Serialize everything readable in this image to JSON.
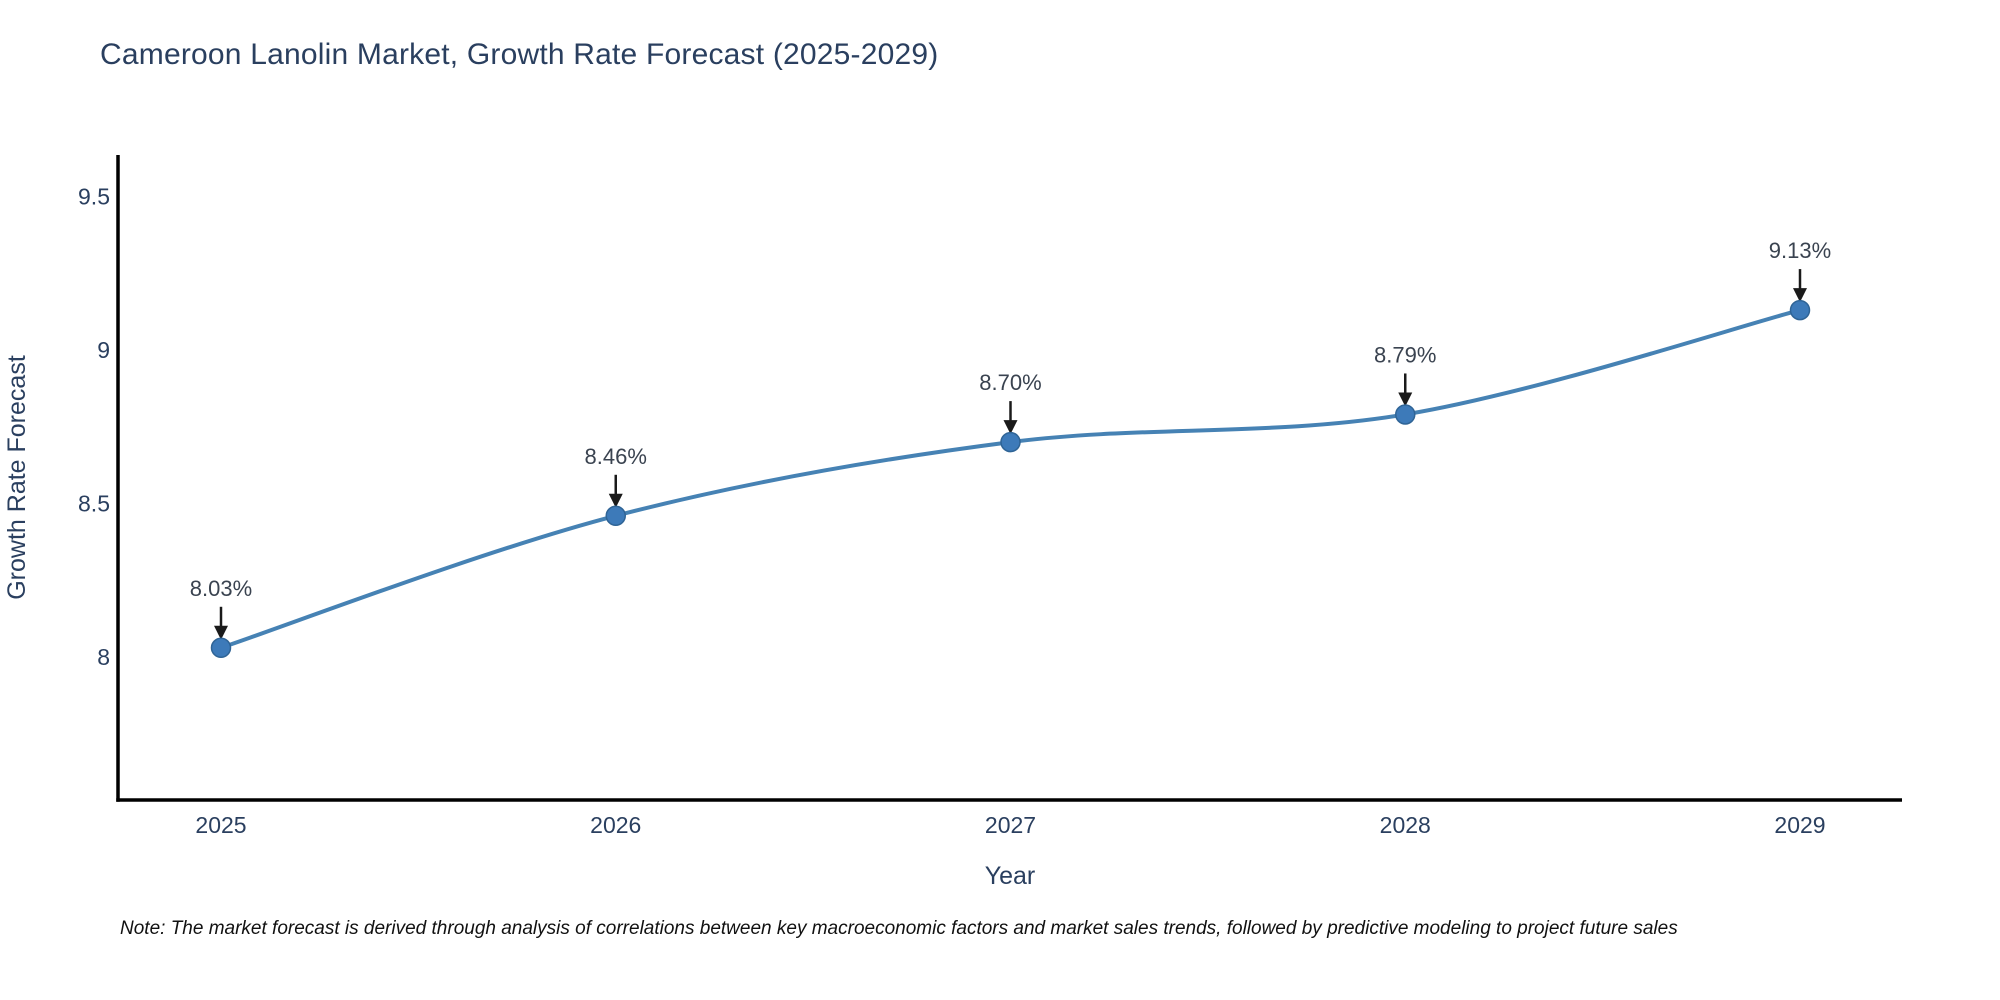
{
  "page": {
    "background": "#ffffff"
  },
  "chart_data": {
    "type": "line",
    "title": "Cameroon Lanolin Market, Growth Rate Forecast (2025-2029)",
    "xlabel": "Year",
    "ylabel": "Growth Rate Forecast",
    "categories": [
      "2025",
      "2026",
      "2027",
      "2028",
      "2029"
    ],
    "series": [
      {
        "name": "Growth Rate Forecast",
        "values": [
          8.03,
          8.46,
          8.7,
          8.79,
          9.13
        ]
      }
    ],
    "point_labels": [
      "8.03%",
      "8.46%",
      "8.70%",
      "8.79%",
      "9.13%"
    ],
    "yticks": {
      "values": [
        8,
        8.5,
        9,
        9.5
      ],
      "labels": [
        "8",
        "8.5",
        "9",
        "9.5"
      ]
    },
    "ylim": [
      7.53,
      9.63
    ],
    "grid": false,
    "legend_position": "none",
    "line_shape": "spline",
    "colors": {
      "line": "#4682b4",
      "marker": "#3d7ab9",
      "marker_edge": "#2f6496",
      "axis": "#000000",
      "text": "#2a3f5f",
      "annotation_text": "#3a4350",
      "arrow": "#1a1a1a"
    }
  },
  "note": {
    "text": "Note: The market forecast is derived through analysis of correlations between key macroeconomic factors and market sales trends, followed by predictive modeling to project future sales"
  }
}
